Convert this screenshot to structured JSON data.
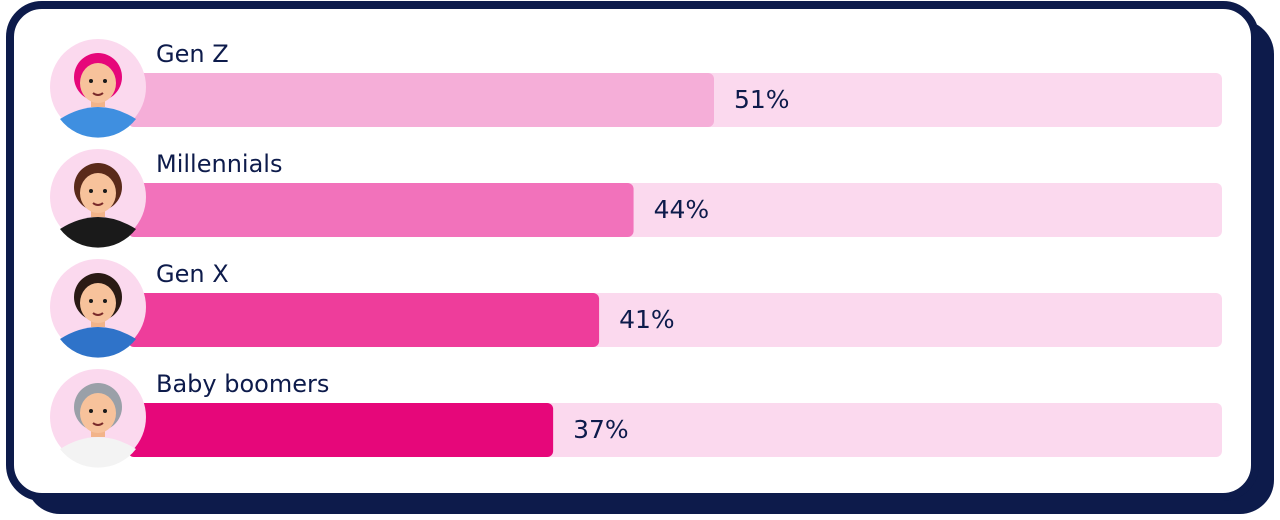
{
  "chart_data": {
    "type": "bar",
    "categories": [
      "Gen Z",
      "Millennials",
      "Gen X",
      "Baby boomers"
    ],
    "series": [
      {
        "values": [
          51,
          44,
          41,
          37
        ],
        "value_labels": [
          "51%",
          "44%",
          "41%",
          "37%"
        ],
        "colors": [
          "#f5aed8",
          "#f272bb",
          "#ee3d9b",
          "#e6077a"
        ]
      }
    ],
    "track_color": "#fbd9ee"
  }
}
